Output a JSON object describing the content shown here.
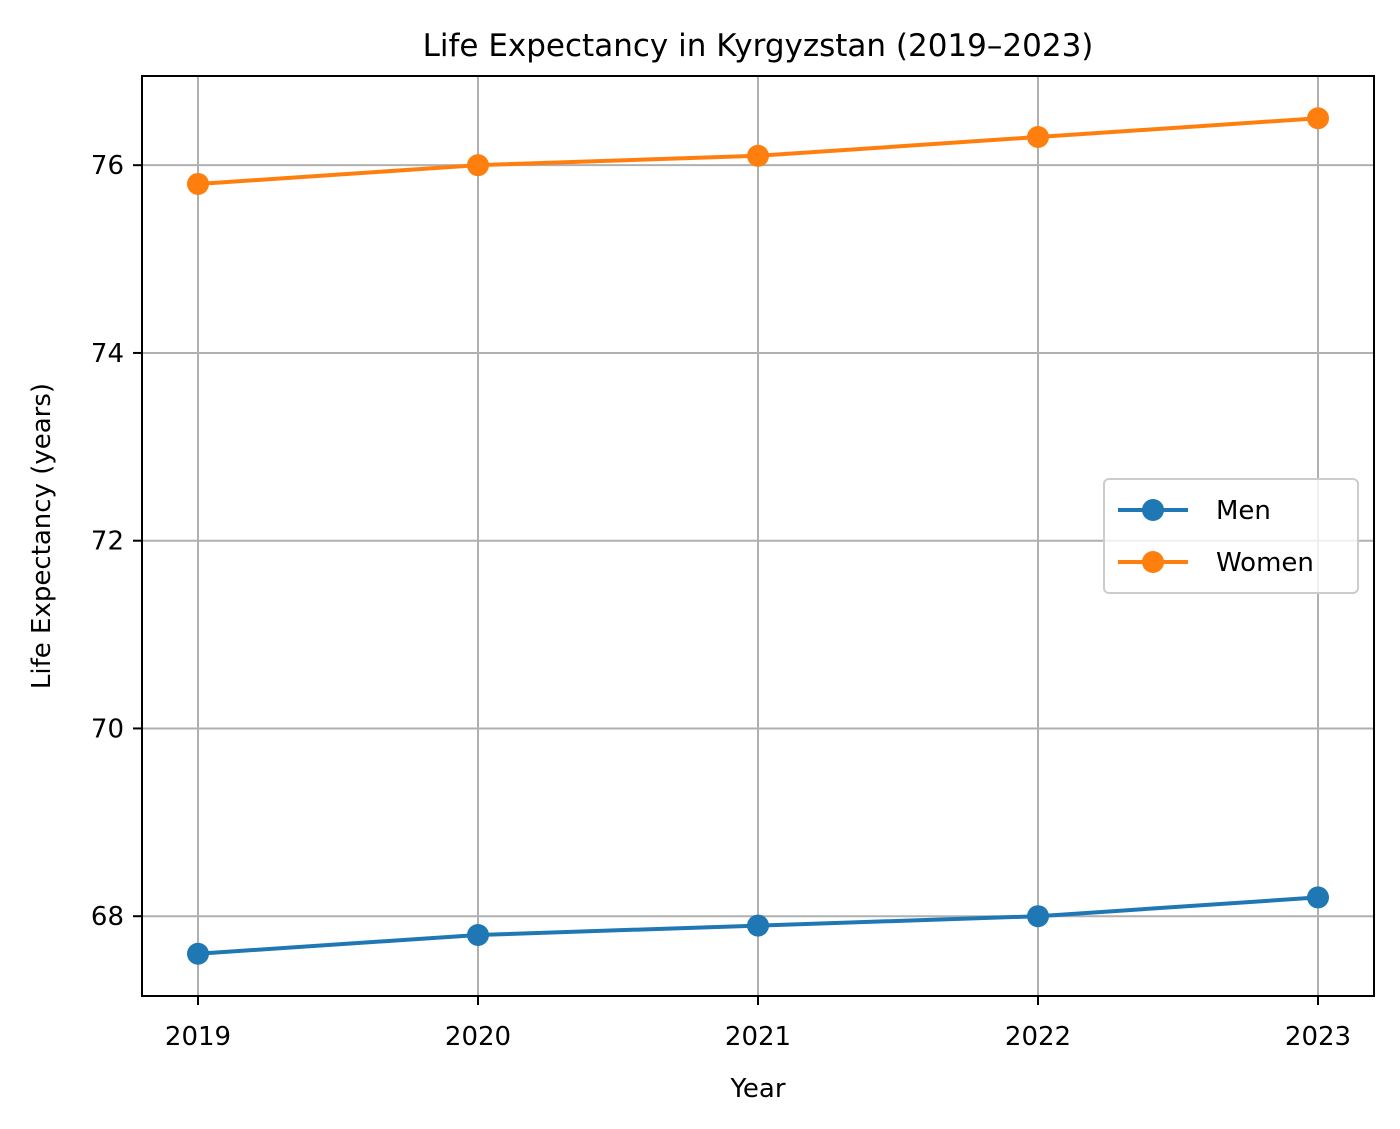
{
  "chart_data": {
    "type": "line",
    "title": "Life Expectancy in Kyrgyzstan (2019–2023)",
    "xlabel": "Year",
    "ylabel": "Life Expectancy (years)",
    "x": [
      "2019",
      "2020",
      "2021",
      "2022",
      "2023"
    ],
    "y_ticks": [
      "68",
      "70",
      "72",
      "74",
      "76"
    ],
    "ylim": [
      67.15,
      76.95
    ],
    "grid": true,
    "legend_position": "center-right",
    "series": [
      {
        "name": "Men",
        "values": [
          67.6,
          67.8,
          67.9,
          68.0,
          68.2
        ],
        "color": "#1f77b4"
      },
      {
        "name": "Women",
        "values": [
          75.8,
          76.0,
          76.1,
          76.3,
          76.5
        ],
        "color": "#ff7f0e"
      }
    ]
  }
}
